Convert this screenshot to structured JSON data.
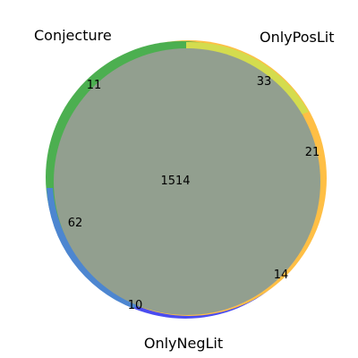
{
  "sets": [
    {
      "name": "Conjecture",
      "color": "#4caf50"
    },
    {
      "name": "OnlyPosLit",
      "color": "#ffb74d"
    },
    {
      "name": "OnlyNegLit",
      "color": "#3f51f5"
    }
  ],
  "regions": {
    "all_three": "1514",
    "conjecture_only": "11",
    "onlyposlit_only": "33",
    "conjecture_onlyposlit": "21",
    "conjecture_onlyneglit": "62",
    "onlyposlit_onlyneglit": "14",
    "onlyneglit_only": "10"
  },
  "colors": {
    "overlap_fill": "#929f8f",
    "ring_green": "#4caf50",
    "ring_yellow": "#d4dc4e",
    "ring_orange": "#ffbf45",
    "ring_blue": "#4d86d0",
    "ring_indigo": "#4a4cf0",
    "ring_pink": "#c9a0c0"
  }
}
